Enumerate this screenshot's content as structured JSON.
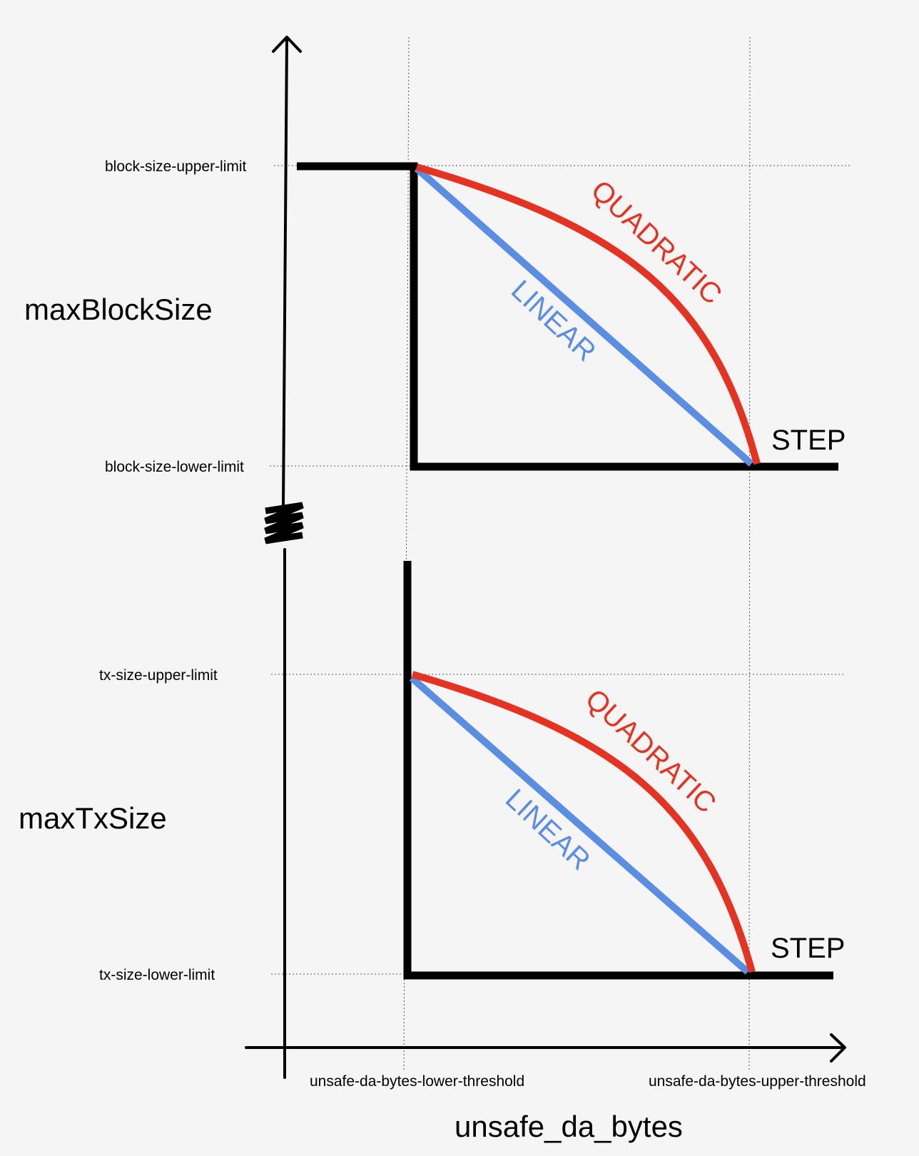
{
  "colors": {
    "background": "#f5f5f5",
    "step": "#000000",
    "linear": "#5b8de2",
    "quadratic": "#e53323",
    "axis": "#000000"
  },
  "x_axis": {
    "title": "unsafe_da_bytes",
    "lower_threshold_label": "unsafe-da-bytes-lower-threshold",
    "upper_threshold_label": "unsafe-da-bytes-upper-threshold"
  },
  "top_panel": {
    "title": "maxBlockSize",
    "upper_limit_label": "block-size-upper-limit",
    "lower_limit_label": "block-size-lower-limit",
    "quadratic_label": "QUADRATIC",
    "linear_label": "LINEAR",
    "step_label": "STEP"
  },
  "bottom_panel": {
    "title": "maxTxSize",
    "upper_limit_label": "tx-size-upper-limit",
    "lower_limit_label": "tx-size-lower-limit",
    "quadratic_label": "QUADRATIC",
    "linear_label": "LINEAR",
    "step_label": "STEP"
  },
  "y_axis_break_icon": "axis-break-zigzag"
}
